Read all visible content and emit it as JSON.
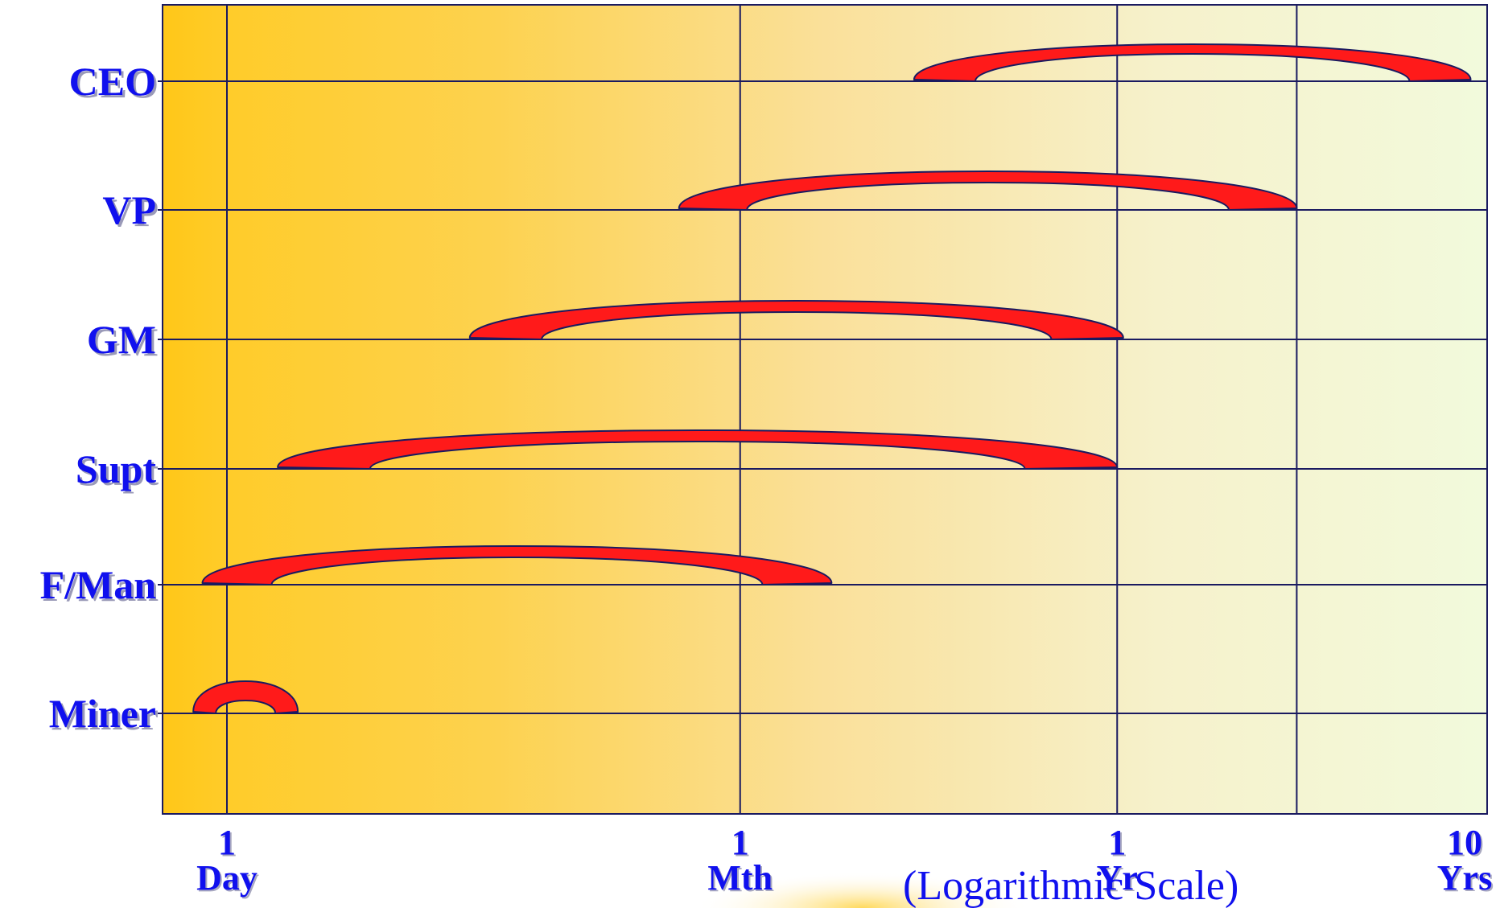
{
  "chart_data": {
    "type": "other",
    "x_scale": "logarithmic",
    "x_ticks": [
      {
        "value": 1,
        "top": "1",
        "bottom": "Day"
      },
      {
        "value": 30,
        "top": "1",
        "bottom": "Mth"
      },
      {
        "value": 365,
        "top": "1",
        "bottom": "Yr"
      },
      {
        "value": 3650,
        "top": "10",
        "bottom": "Yrs"
      }
    ],
    "x_range_days": [
      0.8,
      4000
    ],
    "scale_note": "(Logarithmic Scale)",
    "roles": [
      {
        "label": "CEO",
        "start_days": 95,
        "end_days": 3800
      },
      {
        "label": "VP",
        "start_days": 20,
        "end_days": 1200
      },
      {
        "label": "GM",
        "start_days": 5,
        "end_days": 380
      },
      {
        "label": "Supt",
        "start_days": 1.4,
        "end_days": 365
      },
      {
        "label": "F/Man",
        "start_days": 0.85,
        "end_days": 55
      },
      {
        "label": "Miner",
        "start_days": 0.8,
        "end_days": 1.6
      }
    ],
    "grid": true,
    "colors": {
      "arc_fill": "#ff1a1a",
      "arc_stroke": "#1a1a60",
      "label": "#1010ee",
      "grid": "#1a1a60",
      "bg_left": "#ffc718",
      "bg_right": "#f2fadc"
    }
  }
}
